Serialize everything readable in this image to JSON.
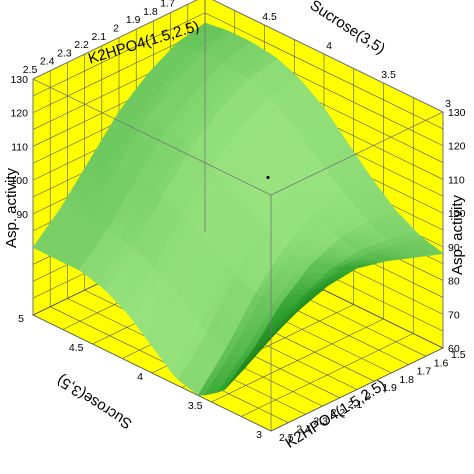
{
  "chart_data": {
    "type": "surface3d",
    "title": "",
    "axes": {
      "k2hpo4_front": {
        "label": "K2HPO4(1.5,2.5)",
        "ticks": [
          "1.5",
          "1.6",
          "1.7",
          "1.8",
          "1.9",
          "2",
          "2.1",
          "2.2",
          "2.3",
          "2.4",
          "2.5"
        ],
        "range": [
          1.5,
          2.5
        ]
      },
      "k2hpo4_back": {
        "label": "K2HPO4(1.5,2.5)",
        "ticks": [
          "1.5",
          "1.6",
          "1.7",
          "1.8",
          "1.9",
          "2",
          "2.1",
          "2.2",
          "2.3",
          "2.4",
          "2.5"
        ]
      },
      "sucrose_front": {
        "label": "Sucrose(3,5)",
        "ticks": [
          "3",
          "3.5",
          "4",
          "4.5",
          "5"
        ],
        "range": [
          3,
          5
        ]
      },
      "sucrose_back": {
        "label": "Sucrose(3,5)",
        "ticks": [
          "3",
          "3.5",
          "4",
          "4.5",
          "5"
        ]
      },
      "activity_left": {
        "label": "Asp. activity",
        "ticks": [
          "90",
          "100",
          "110",
          "120",
          "130"
        ]
      },
      "activity_right": {
        "label": "Asp. activity",
        "ticks": [
          "60",
          "70",
          "80",
          "90",
          "100",
          "110",
          "120",
          "130"
        ],
        "range": [
          60,
          130
        ]
      }
    },
    "series": [
      {
        "values": [
          [
            88,
            90,
            94,
            100,
            107,
            114,
            119,
            122,
            123,
            123,
            122
          ],
          [
            91,
            92,
            95,
            100,
            106,
            112,
            117,
            120,
            121,
            121,
            120
          ],
          [
            94,
            93,
            94,
            97,
            101,
            107,
            112,
            115,
            116,
            116,
            115
          ],
          [
            96,
            92,
            90,
            91,
            95,
            100,
            105,
            108,
            109,
            109,
            108
          ],
          [
            95,
            88,
            83,
            82,
            85,
            90,
            95,
            98,
            99,
            99,
            98
          ],
          [
            92,
            82,
            73,
            70,
            72,
            78,
            83,
            86,
            88,
            88,
            88
          ],
          [
            88,
            76,
            65,
            60,
            62,
            68,
            74,
            78,
            80,
            80,
            80
          ]
        ]
      }
    ],
    "grid": true,
    "legend": "none",
    "colors": {
      "walls": "#ffff00",
      "grid": "#555555",
      "surface_light": "#98e37e",
      "surface_mid": "#2fa12f",
      "surface_dark": "#166b16"
    }
  }
}
